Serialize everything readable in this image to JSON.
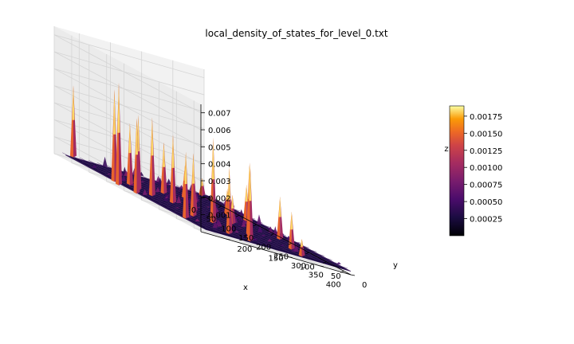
{
  "chart_data": {
    "type": "surface",
    "title": "local_density_of_states_for_level_0.txt",
    "xlabel": "x",
    "ylabel": "y",
    "zlabel": "z",
    "xlim": [
      0,
      420
    ],
    "ylim": [
      0,
      240
    ],
    "zlim": [
      0,
      0.0075
    ],
    "x_ticks": [
      "0",
      "50",
      "100",
      "150",
      "200",
      "250",
      "300",
      "350",
      "400"
    ],
    "y_ticks": [
      "0",
      "50",
      "100",
      "150",
      "200"
    ],
    "z_ticks": [
      "0.001",
      "0.002",
      "0.003",
      "0.004",
      "0.005",
      "0.006",
      "0.007"
    ],
    "colormap": "inferno",
    "colorbar": {
      "range": [
        0,
        0.0019
      ],
      "ticks": [
        "0.00025",
        "0.00050",
        "0.00075",
        "0.00100",
        "0.00125",
        "0.00150",
        "0.00175"
      ]
    },
    "grid": true,
    "peaks": [
      {
        "x": 10,
        "y": 215,
        "z": 0.0044
      },
      {
        "x": 30,
        "y": 20,
        "z": 0.0012
      },
      {
        "x": 115,
        "y": 95,
        "z": 0.0021
      },
      {
        "x": 120,
        "y": 175,
        "z": 0.0024
      },
      {
        "x": 135,
        "y": 140,
        "z": 0.0032
      },
      {
        "x": 145,
        "y": 200,
        "z": 0.0038
      },
      {
        "x": 150,
        "y": 100,
        "z": 0.0013
      },
      {
        "x": 158,
        "y": 232,
        "z": 0.0056
      },
      {
        "x": 165,
        "y": 55,
        "z": 0.0017
      },
      {
        "x": 175,
        "y": 30,
        "z": 0.0023
      },
      {
        "x": 178,
        "y": 205,
        "z": 0.0046
      },
      {
        "x": 185,
        "y": 240,
        "z": 0.0062
      },
      {
        "x": 200,
        "y": 195,
        "z": 0.0048
      },
      {
        "x": 215,
        "y": 170,
        "z": 0.0042
      },
      {
        "x": 222,
        "y": 232,
        "z": 0.0046
      },
      {
        "x": 240,
        "y": 150,
        "z": 0.0022
      },
      {
        "x": 260,
        "y": 100,
        "z": 0.0019
      },
      {
        "x": 280,
        "y": 35,
        "z": 0.0027
      },
      {
        "x": 300,
        "y": 185,
        "z": 0.0039
      },
      {
        "x": 312,
        "y": 160,
        "z": 0.0052
      },
      {
        "x": 330,
        "y": 112,
        "z": 0.0043
      },
      {
        "x": 350,
        "y": 225,
        "z": 0.0041
      },
      {
        "x": 358,
        "y": 60,
        "z": 0.0024
      },
      {
        "x": 385,
        "y": 175,
        "z": 0.0041
      },
      {
        "x": 400,
        "y": 150,
        "z": 0.0048
      },
      {
        "x": 405,
        "y": 70,
        "z": 0.0012
      }
    ]
  }
}
